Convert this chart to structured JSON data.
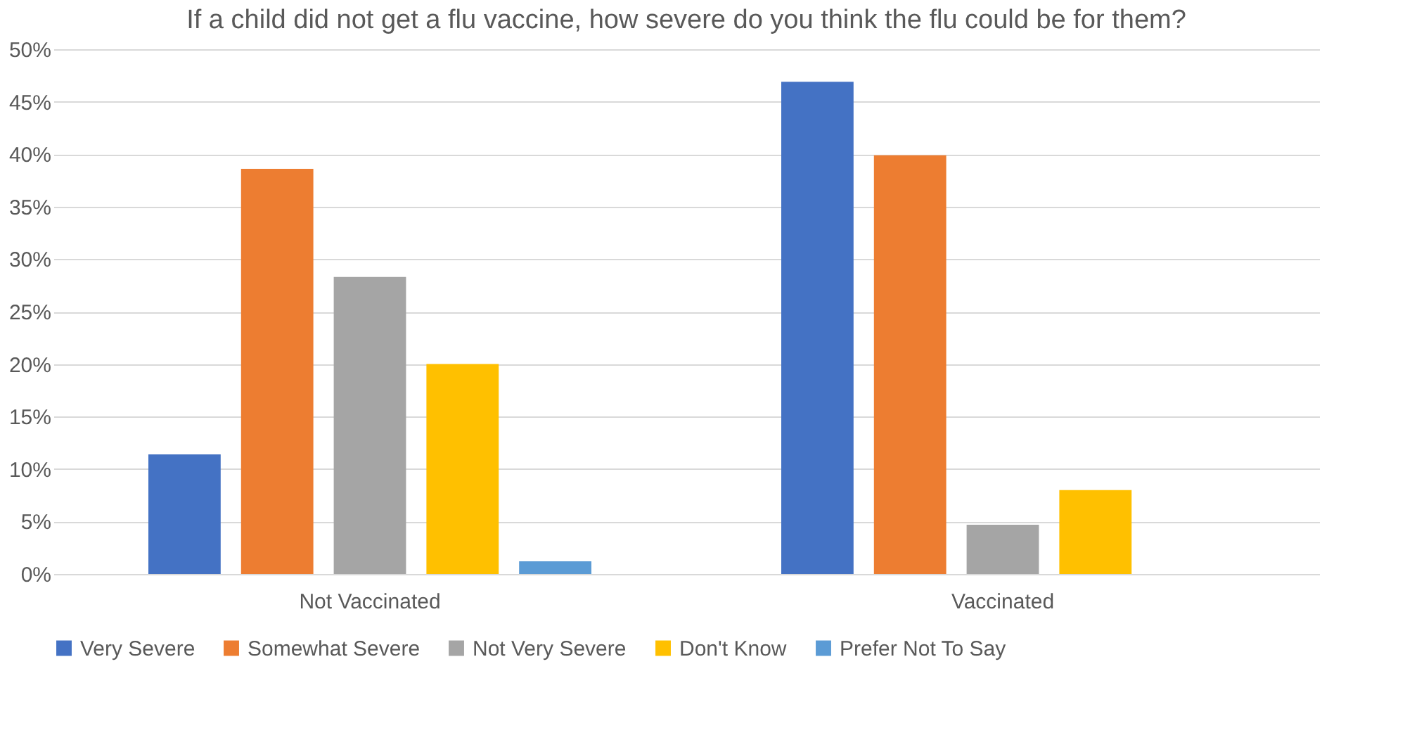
{
  "chart_data": {
    "type": "bar",
    "title": "If a child did not get a flu vaccine, how severe do you think the flu could be for them?",
    "categories": [
      "Not Vaccinated",
      "Vaccinated"
    ],
    "series": [
      {
        "name": "Very Severe",
        "color": "#4472c4",
        "values": [
          11.4,
          46.9
        ]
      },
      {
        "name": "Somewhat Severe",
        "color": "#ed7d31",
        "values": [
          38.6,
          39.9
        ]
      },
      {
        "name": "Not Very Severe",
        "color": "#a5a5a5",
        "values": [
          28.3,
          4.7
        ]
      },
      {
        "name": "Don't Know",
        "color": "#ffc000",
        "values": [
          20.0,
          8.0
        ]
      },
      {
        "name": "Prefer Not To Say",
        "color": "#5b9bd5",
        "values": [
          1.2,
          0
        ]
      }
    ],
    "ylim": [
      0,
      50
    ],
    "yticks": [
      {
        "value": 0,
        "label": "0%"
      },
      {
        "value": 5,
        "label": "5%"
      },
      {
        "value": 10,
        "label": "10%"
      },
      {
        "value": 15,
        "label": "15%"
      },
      {
        "value": 20,
        "label": "20%"
      },
      {
        "value": 25,
        "label": "25%"
      },
      {
        "value": 30,
        "label": "30%"
      },
      {
        "value": 35,
        "label": "35%"
      },
      {
        "value": 40,
        "label": "40%"
      },
      {
        "value": 45,
        "label": "45%"
      },
      {
        "value": 50,
        "label": "50%"
      }
    ],
    "grid": "y",
    "legend": "bottom"
  }
}
